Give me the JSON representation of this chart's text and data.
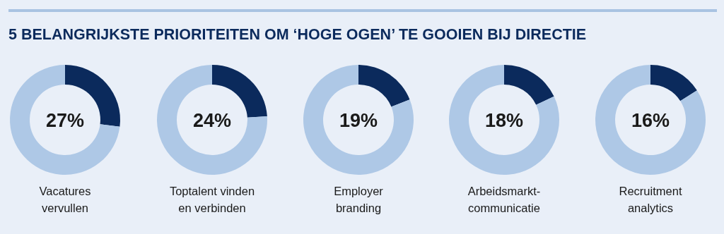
{
  "chart_data": [
    {
      "type": "donut",
      "title": "5 BELANGRIJKSTE PRIORITEITEN OM ‘HOGE OGEN’ TE GOOIEN BIJ DIRECTIE",
      "categories": [
        null,
        null
      ],
      "values": [
        27,
        73
      ],
      "colors": [
        "#0b2a5c",
        "#aec8e6"
      ],
      "annotations": [
        "27%"
      ],
      "xlabel": "Vacatures vervullen"
    },
    {
      "type": "donut",
      "categories": [
        null,
        null
      ],
      "values": [
        24,
        76
      ],
      "colors": [
        "#0b2a5c",
        "#aec8e6"
      ],
      "annotations": [
        "24%"
      ],
      "xlabel": "Toptalent vinden en verbinden"
    },
    {
      "type": "donut",
      "categories": [
        null,
        null
      ],
      "values": [
        19,
        81
      ],
      "colors": [
        "#0b2a5c",
        "#aec8e6"
      ],
      "annotations": [
        "19%"
      ],
      "xlabel": "Employer branding"
    },
    {
      "type": "donut",
      "categories": [
        null,
        null
      ],
      "values": [
        18,
        82
      ],
      "colors": [
        "#0b2a5c",
        "#aec8e6"
      ],
      "annotations": [
        "18%"
      ],
      "xlabel": "Arbeidsmarkt-communicatie"
    },
    {
      "type": "donut",
      "categories": [
        null,
        null
      ],
      "values": [
        16,
        84
      ],
      "colors": [
        "#0b2a5c",
        "#aec8e6"
      ],
      "annotations": [
        "16%"
      ],
      "xlabel": "Recruitment analytics"
    }
  ]
}
